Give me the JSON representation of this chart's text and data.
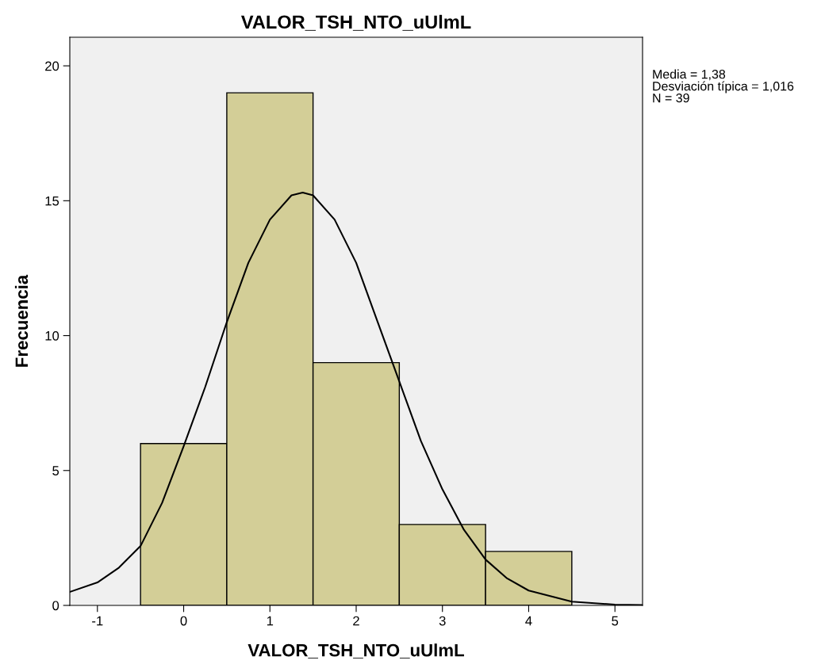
{
  "chart_data": {
    "type": "histogram",
    "title": "VALOR_TSH_NTO_uUlmL",
    "xlabel": "VALOR_TSH_NTO_uUlmL",
    "ylabel": "Frecuencia",
    "bins": [
      -0.5,
      0.5,
      1.5,
      2.5,
      3.5,
      4.5
    ],
    "values": [
      6,
      19,
      9,
      3,
      2
    ],
    "color": "#d3ce97",
    "series": [
      {
        "type": "line",
        "color": "#000000",
        "x": [
          -1.32,
          -1.0,
          -0.75,
          -0.5,
          -0.25,
          0.0,
          0.25,
          0.5,
          0.75,
          1.0,
          1.25,
          1.38,
          1.5,
          1.75,
          2.0,
          2.25,
          2.5,
          2.75,
          3.0,
          3.25,
          3.5,
          3.75,
          4.0,
          4.5,
          5.0,
          5.32
        ],
        "values": [
          0.5,
          0.85,
          1.4,
          2.2,
          3.8,
          5.9,
          8.1,
          10.5,
          12.7,
          14.3,
          15.2,
          15.3,
          15.2,
          14.3,
          12.7,
          10.5,
          8.3,
          6.1,
          4.3,
          2.8,
          1.7,
          1.0,
          0.55,
          0.14,
          0.03,
          0.01
        ]
      }
    ],
    "xlim": [
      -1.32,
      5.32
    ],
    "ylim": [
      0,
      21.06
    ],
    "xticks": [
      -1,
      0,
      1,
      2,
      3,
      4,
      5
    ],
    "yticks": [
      0,
      5,
      10,
      15,
      20
    ],
    "grid": false,
    "annotations": [
      "Media = 1,38",
      "Desviación típica = 1,016",
      "N = 39"
    ]
  }
}
